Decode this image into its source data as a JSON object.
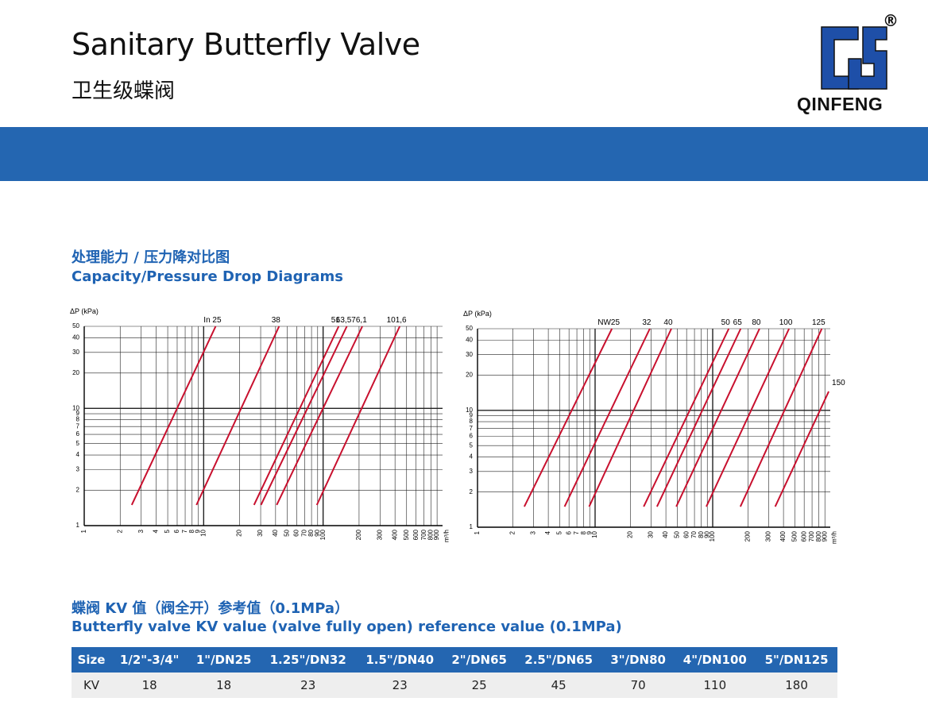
{
  "header": {
    "title": "Sanitary Butterfly Valve",
    "subtitle": "卫生级蝶阀",
    "logo": "QINFENG",
    "registered": "®"
  },
  "section1": {
    "title_cn": "处理能力 / 压力降对比图",
    "title_en": "Capacity/Pressure Drop Diagrams"
  },
  "chart_data": [
    {
      "type": "line",
      "ylabel": "ΔP (kPa)",
      "xlabel": "m³/h",
      "log_x": true,
      "log_y": true,
      "grid": true,
      "color": "#c8102e",
      "xlim": [
        1,
        1000
      ],
      "ylim": [
        1,
        50
      ],
      "xticks": [
        1,
        2,
        3,
        4,
        5,
        6,
        7,
        8,
        9,
        10,
        20,
        30,
        40,
        50,
        60,
        70,
        80,
        90,
        100,
        200,
        300,
        400,
        500,
        600,
        700,
        800,
        900
      ],
      "yticks": [
        1,
        2,
        3,
        4,
        5,
        6,
        7,
        8,
        9,
        10,
        20,
        30,
        40,
        50
      ],
      "series": [
        {
          "name": "In 25",
          "x": [
            2.5,
            12.6
          ],
          "values": [
            1.5,
            50
          ]
        },
        {
          "name": "38",
          "x": [
            8.7,
            42.8
          ],
          "values": [
            1.5,
            50
          ]
        },
        {
          "name": "51",
          "x": [
            26.4,
            135
          ],
          "values": [
            1.5,
            50
          ]
        },
        {
          "name": "63,5",
          "x": [
            30.2,
            158
          ],
          "values": [
            1.5,
            50
          ]
        },
        {
          "name": "76,1",
          "x": [
            40.9,
            213
          ],
          "values": [
            1.5,
            50
          ]
        },
        {
          "name": "101,6",
          "x": [
            88.6,
            438
          ],
          "values": [
            1.5,
            50
          ]
        }
      ]
    },
    {
      "type": "line",
      "ylabel": "ΔP (kPa)",
      "xlabel": "m³/h",
      "log_x": true,
      "log_y": true,
      "grid": true,
      "color": "#c8102e",
      "xlim": [
        1,
        1000
      ],
      "ylim": [
        1,
        50
      ],
      "xticks": [
        1,
        2,
        3,
        4,
        5,
        6,
        7,
        8,
        9,
        10,
        20,
        30,
        40,
        50,
        60,
        70,
        80,
        90,
        100,
        200,
        300,
        400,
        500,
        600,
        700,
        800,
        900
      ],
      "yticks": [
        1,
        2,
        3,
        4,
        5,
        6,
        7,
        8,
        9,
        10,
        20,
        30,
        40,
        50
      ],
      "series": [
        {
          "name": "NW25",
          "x": [
            2.5,
            13.9
          ],
          "values": [
            1.5,
            50
          ]
        },
        {
          "name": "32",
          "x": [
            5.5,
            29.2
          ],
          "values": [
            1.5,
            50
          ]
        },
        {
          "name": "40",
          "x": [
            8.9,
            44.5
          ],
          "values": [
            1.5,
            50
          ]
        },
        {
          "name": "50",
          "x": [
            25.9,
            137
          ],
          "values": [
            1.5,
            50
          ]
        },
        {
          "name": "65",
          "x": [
            33.6,
            173
          ],
          "values": [
            1.5,
            50
          ]
        },
        {
          "name": "80",
          "x": [
            49,
            250
          ],
          "values": [
            1.5,
            50
          ]
        },
        {
          "name": "100",
          "x": [
            88.3,
            446
          ],
          "values": [
            1.5,
            50
          ]
        },
        {
          "name": "125",
          "x": [
            172,
            847
          ],
          "values": [
            1.5,
            50
          ]
        },
        {
          "name": "150",
          "x": [
            340,
            970
          ],
          "values": [
            1.5,
            14.5
          ]
        }
      ]
    }
  ],
  "section2": {
    "title_cn": "蝶阀 KV 值（阀全开）参考值（0.1MPa）",
    "title_en": "Butterfly valve KV value (valve fully open) reference value (0.1MPa)"
  },
  "table": {
    "header": [
      "Size",
      "1/2\"-3/4\"",
      "1\"/DN25",
      "1.25\"/DN32",
      "1.5\"/DN40",
      "2\"/DN65",
      "2.5\"/DN65",
      "3\"/DN80",
      "4\"/DN100",
      "5\"/DN125"
    ],
    "rows": [
      [
        "KV",
        "18",
        "18",
        "23",
        "23",
        "25",
        "45",
        "70",
        "110",
        "180"
      ]
    ]
  }
}
